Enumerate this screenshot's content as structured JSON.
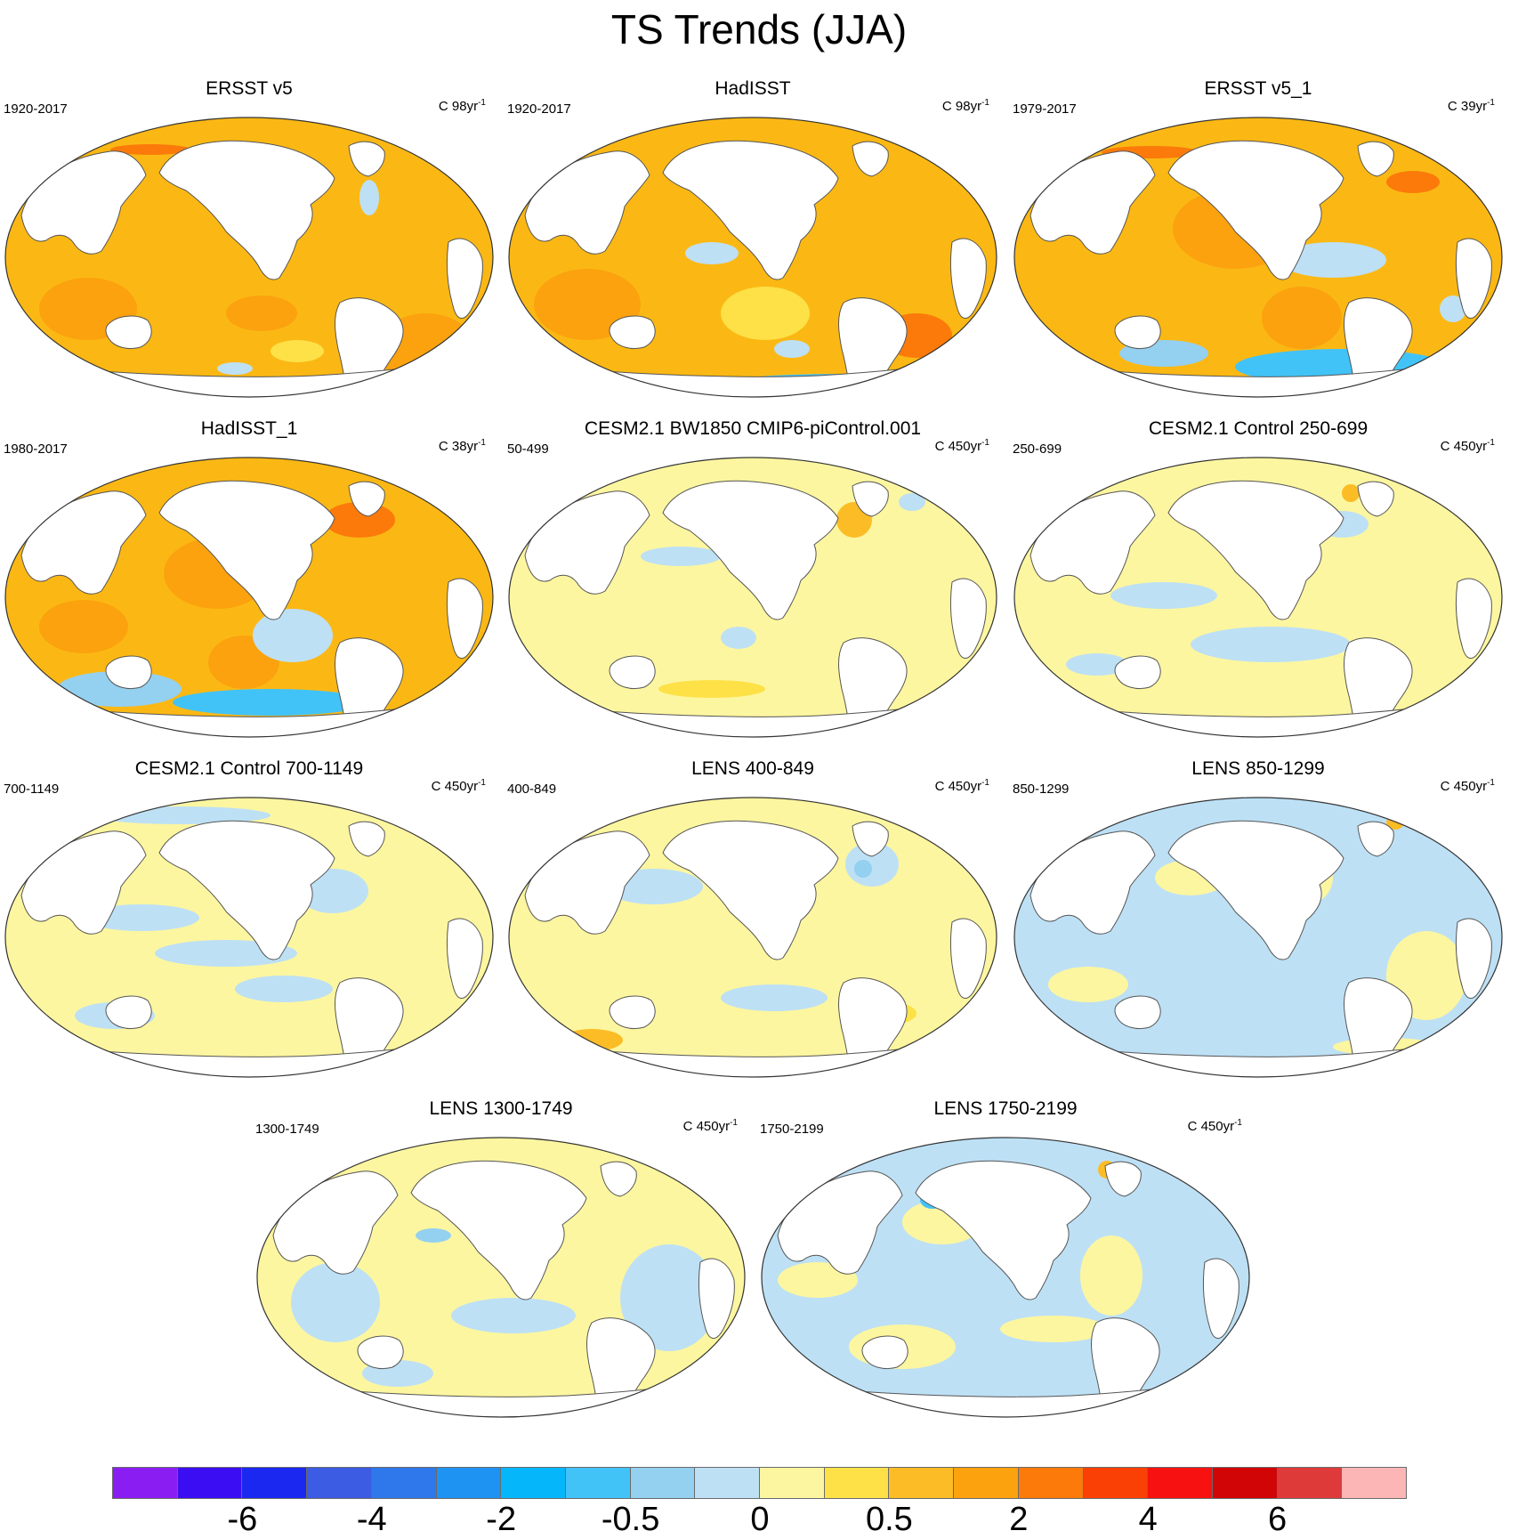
{
  "title": "TS Trends (JJA)",
  "panels": [
    {
      "title": "ERSST v5",
      "period": "1920-2017",
      "units": "C 98yr",
      "units_exp": "-1",
      "palette": "warm-strong",
      "ocean_color": "#fbb814",
      "pattern": "ersst"
    },
    {
      "title": "HadISST",
      "period": "1920-2017",
      "units": "C 98yr",
      "units_exp": "-1",
      "palette": "warm-mixed",
      "ocean_color": "#fbb814",
      "pattern": "hadisst"
    },
    {
      "title": "ERSST v5_1",
      "period": "1979-2017",
      "units": "C 39yr",
      "units_exp": "-1",
      "palette": "warm-south-cool",
      "ocean_color": "#fbb814",
      "pattern": "ersst1"
    },
    {
      "title": "HadISST_1",
      "period": "1980-2017",
      "units": "C 38yr",
      "units_exp": "-1",
      "palette": "warm-south-cool",
      "ocean_color": "#fbb814",
      "pattern": "hadisst1"
    },
    {
      "title": "CESM2.1 BW1850 CMIP6-piControl.001",
      "period": "50-499",
      "units": "C 450yr",
      "units_exp": "-1",
      "palette": "neutral-yellow",
      "ocean_color": "#fdf6a0",
      "pattern": "cesm-a"
    },
    {
      "title": "CESM2.1 Control 250-699",
      "period": "250-699",
      "units": "C 450yr",
      "units_exp": "-1",
      "palette": "neutral-mixed",
      "ocean_color": "#fdf6a0",
      "pattern": "cesm-b"
    },
    {
      "title": "CESM2.1 Control 700-1149",
      "period": "700-1149",
      "units": "C 450yr",
      "units_exp": "-1",
      "palette": "neutral-mixed",
      "ocean_color": "#fdf6a0",
      "pattern": "cesm-c"
    },
    {
      "title": "LENS 400-849",
      "period": "400-849",
      "units": "C 450yr",
      "units_exp": "-1",
      "palette": "neutral-yellow",
      "ocean_color": "#fdf6a0",
      "pattern": "lens-a"
    },
    {
      "title": "LENS 850-1299",
      "period": "850-1299",
      "units": "C 450yr",
      "units_exp": "-1",
      "palette": "neutral-blue",
      "ocean_color": "#bde0f5",
      "pattern": "lens-b"
    },
    {
      "title": "LENS 1300-1749",
      "period": "1300-1749",
      "units": "C 450yr",
      "units_exp": "-1",
      "palette": "neutral-blue",
      "ocean_color": "#fdf6a0",
      "pattern": "lens-c"
    },
    {
      "title": "LENS 1750-2199",
      "period": "1750-2199",
      "units": "C 450yr",
      "units_exp": "-1",
      "palette": "neutral-blue",
      "ocean_color": "#bde0f5",
      "pattern": "lens-d"
    }
  ],
  "colorbar": {
    "colors": [
      "#8a1ef2",
      "#3b0df2",
      "#1a28f0",
      "#3c5ce3",
      "#2f78ec",
      "#1f93f2",
      "#06b6fb",
      "#42c3f7",
      "#94d0f0",
      "#bde0f5",
      "#fdf6a0",
      "#fde147",
      "#fbbc26",
      "#fba20e",
      "#fb7a0a",
      "#fb4006",
      "#f71111",
      "#d10505",
      "#df3a3a",
      "#fdb6b6"
    ],
    "labels": [
      {
        "text": "-6",
        "boundary": 2
      },
      {
        "text": "-4",
        "boundary": 4
      },
      {
        "text": "-2",
        "boundary": 6
      },
      {
        "text": "-0.5",
        "boundary": 8
      },
      {
        "text": "0",
        "boundary": 10
      },
      {
        "text": "0.5",
        "boundary": 12
      },
      {
        "text": "2",
        "boundary": 14
      },
      {
        "text": "4",
        "boundary": 16
      },
      {
        "text": "6",
        "boundary": 18
      }
    ]
  }
}
